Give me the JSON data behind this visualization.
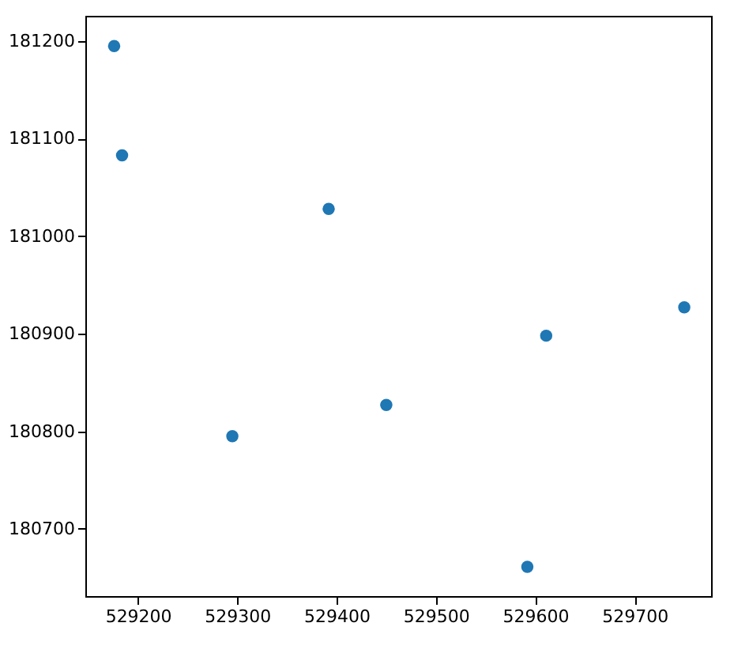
{
  "chart_data": {
    "type": "scatter",
    "x": [
      529176,
      529184,
      529392,
      529295,
      529450,
      529611,
      529750,
      529592
    ],
    "values": [
      181195,
      181083,
      181028,
      180795,
      180827,
      180898,
      180927,
      180661
    ],
    "color": "#1f77b4",
    "marker": "circle",
    "grid": false,
    "xlim": [
      529147,
      529777
    ],
    "ylim": [
      180631,
      181226
    ],
    "xticks": [
      529200,
      529300,
      529400,
      529500,
      529600,
      529700
    ],
    "yticks": [
      180700,
      180800,
      180900,
      181000,
      181100,
      181200
    ]
  }
}
